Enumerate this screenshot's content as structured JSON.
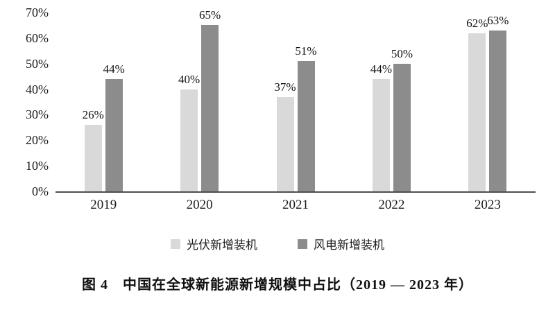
{
  "chart_data": {
    "type": "bar",
    "title": "图 4　中国在全球新能源新增规模中占比（2019 — 2023 年）",
    "categories": [
      "2019",
      "2020",
      "2021",
      "2022",
      "2023"
    ],
    "series": [
      {
        "name": "光伏新增装机",
        "color": "#d9d9d9",
        "values": [
          26,
          40,
          37,
          44,
          62
        ]
      },
      {
        "name": "风电新增装机",
        "color": "#8c8c8c",
        "values": [
          44,
          65,
          51,
          50,
          63
        ]
      }
    ],
    "value_suffix": "%",
    "xlabel": "",
    "ylabel": "",
    "ylim": [
      0,
      70
    ],
    "ytick_step": 10,
    "ytick_labels": [
      "0%",
      "10%",
      "20%",
      "30%",
      "40%",
      "50%",
      "60%",
      "70%"
    ],
    "grid": false,
    "legend_position": "bottom",
    "axis_color": "#4d4d4d"
  }
}
